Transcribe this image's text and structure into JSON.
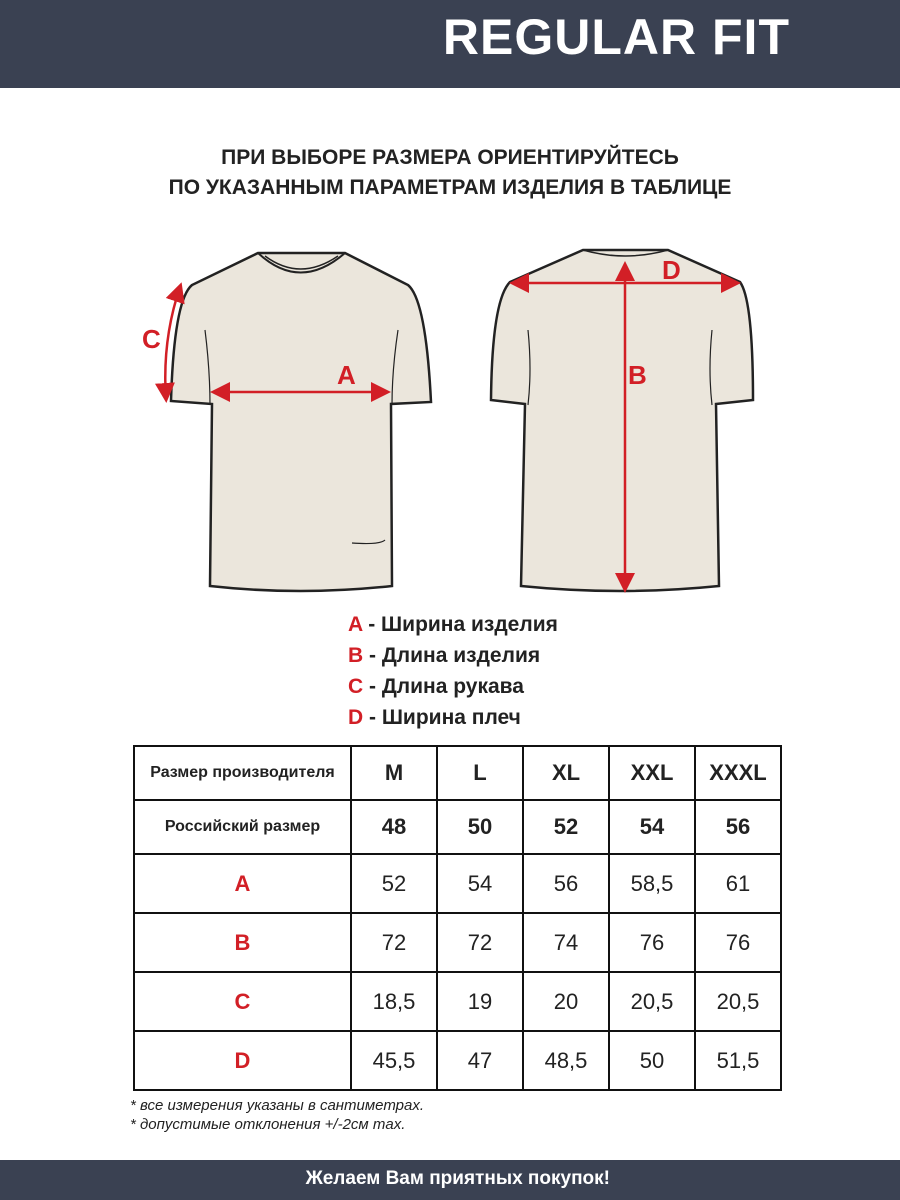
{
  "header": {
    "title": "REGULAR FIT"
  },
  "heading": [
    "ПРИ ВЫБОРЕ РАЗМЕРА ОРИЕНТИРУЙТЕСЬ",
    "ПО УКАЗАННЫМ ПАРАМЕТРАМ ИЗДЕЛИЯ В ТАБЛИЦЕ"
  ],
  "diagram": {
    "labels": {
      "a": "A",
      "b": "B",
      "c": "C",
      "d": "D"
    },
    "shirt_color": "#ebe6dc",
    "arrow_color": "#d21f26"
  },
  "legend": [
    {
      "key": "A",
      "text": " - Ширина изделия"
    },
    {
      "key": "B",
      "text": " - Длина изделия"
    },
    {
      "key": "C",
      "text": " - Длина рукава"
    },
    {
      "key": "D",
      "text": " - Ширина плеч"
    }
  ],
  "table": {
    "header_rows": [
      {
        "label": "Размер производителя",
        "values": [
          "M",
          "L",
          "XL",
          "XXL",
          "XXXL"
        ]
      },
      {
        "label": "Российский размер",
        "values": [
          "48",
          "50",
          "52",
          "54",
          "56"
        ]
      }
    ],
    "rows": [
      {
        "key": "A",
        "values": [
          "52",
          "54",
          "56",
          "58,5",
          "61"
        ]
      },
      {
        "key": "B",
        "values": [
          "72",
          "72",
          "74",
          "76",
          "76"
        ]
      },
      {
        "key": "C",
        "values": [
          "18,5",
          "19",
          "20",
          "20,5",
          "20,5"
        ]
      },
      {
        "key": "D",
        "values": [
          "45,5",
          "47",
          "48,5",
          "50",
          "51,5"
        ]
      }
    ]
  },
  "notes": [
    "* все измерения указаны в сантиметрах.",
    "* допустимые отклонения +/-2см max."
  ],
  "footer": {
    "message": "Желаем Вам приятных покупок!"
  }
}
